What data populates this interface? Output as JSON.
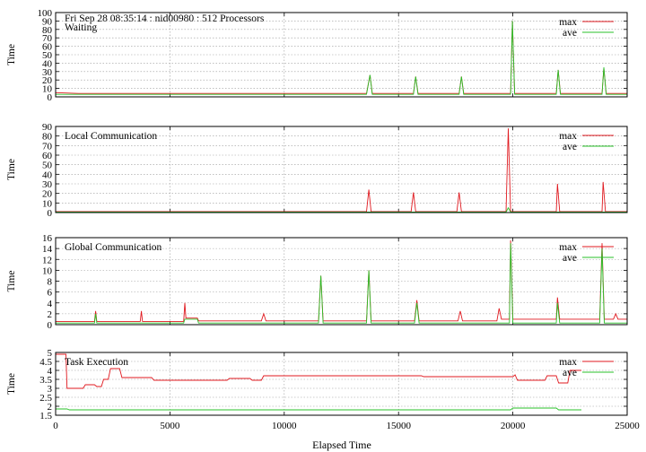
{
  "header": "Fri Sep 28 08:35:14 : nid00980 : 512 Processors",
  "xlabel": "Elapsed Time",
  "xlim": [
    0,
    25000
  ],
  "xticks": [
    0,
    5000,
    10000,
    15000,
    20000,
    25000
  ],
  "colors": {
    "max": "#e0191f",
    "ave": "#28c128",
    "grid": "#9a9a9a",
    "axis": "#000000"
  },
  "chart_data": [
    {
      "type": "line",
      "title": "Waiting",
      "ylabel": "Time",
      "ylim": [
        0,
        100
      ],
      "yticks": [
        0,
        10,
        20,
        30,
        40,
        50,
        60,
        70,
        80,
        90,
        100
      ],
      "grid": true,
      "legend": "top-right",
      "series": [
        {
          "name": "max",
          "color": "#e0191f",
          "points": [
            [
              0,
              5
            ],
            [
              1000,
              4
            ],
            [
              5000,
              4
            ],
            [
              10000,
              4
            ],
            [
              13600,
              4
            ],
            [
              13750,
              26
            ],
            [
              13850,
              4
            ],
            [
              15650,
              4
            ],
            [
              15750,
              24
            ],
            [
              15850,
              4
            ],
            [
              17650,
              4
            ],
            [
              17750,
              24
            ],
            [
              17850,
              4
            ],
            [
              19900,
              4
            ],
            [
              19980,
              90
            ],
            [
              20080,
              4
            ],
            [
              21900,
              4
            ],
            [
              21980,
              32
            ],
            [
              22080,
              4
            ],
            [
              23900,
              4
            ],
            [
              23980,
              34
            ],
            [
              24080,
              4
            ],
            [
              25000,
              4
            ]
          ]
        },
        {
          "name": "ave",
          "color": "#28c128",
          "points": [
            [
              0,
              3
            ],
            [
              1000,
              3
            ],
            [
              5000,
              3
            ],
            [
              10000,
              3
            ],
            [
              13600,
              3
            ],
            [
              13750,
              26
            ],
            [
              13850,
              3
            ],
            [
              15650,
              3
            ],
            [
              15750,
              24
            ],
            [
              15850,
              3
            ],
            [
              17650,
              3
            ],
            [
              17750,
              24
            ],
            [
              17850,
              3
            ],
            [
              19900,
              3
            ],
            [
              19980,
              90
            ],
            [
              20080,
              3
            ],
            [
              21900,
              3
            ],
            [
              21980,
              32
            ],
            [
              22080,
              3
            ],
            [
              23900,
              3
            ],
            [
              23980,
              35
            ],
            [
              24080,
              3
            ],
            [
              25000,
              3
            ]
          ]
        }
      ]
    },
    {
      "type": "line",
      "title": "Local Communication",
      "ylabel": "Time",
      "ylim": [
        0,
        90
      ],
      "yticks": [
        0,
        10,
        20,
        30,
        40,
        50,
        60,
        70,
        80,
        90
      ],
      "grid": true,
      "legend": "top-right",
      "series": [
        {
          "name": "max",
          "color": "#e0191f",
          "points": [
            [
              0,
              1
            ],
            [
              5000,
              1
            ],
            [
              10000,
              1
            ],
            [
              13600,
              1
            ],
            [
              13700,
              24
            ],
            [
              13800,
              1
            ],
            [
              15550,
              1
            ],
            [
              15650,
              21
            ],
            [
              15750,
              1
            ],
            [
              17550,
              1
            ],
            [
              17650,
              21
            ],
            [
              17750,
              1
            ],
            [
              19700,
              1
            ],
            [
              19800,
              88
            ],
            [
              19900,
              1
            ],
            [
              21900,
              1
            ],
            [
              21950,
              30
            ],
            [
              22050,
              1
            ],
            [
              23900,
              1
            ],
            [
              23950,
              32
            ],
            [
              24050,
              1
            ],
            [
              25000,
              1
            ]
          ]
        },
        {
          "name": "ave",
          "color": "#28c128",
          "points": [
            [
              0,
              0.5
            ],
            [
              5000,
              0.5
            ],
            [
              10000,
              0.5
            ],
            [
              19700,
              0.5
            ],
            [
              19800,
              5
            ],
            [
              19900,
              0.5
            ],
            [
              25000,
              0.5
            ]
          ]
        }
      ]
    },
    {
      "type": "line",
      "title": "Global Communication",
      "ylabel": "Time",
      "ylim": [
        0,
        16
      ],
      "yticks": [
        0,
        2,
        4,
        6,
        8,
        10,
        12,
        14,
        16
      ],
      "grid": true,
      "legend": "top-right",
      "series": [
        {
          "name": "max",
          "color": "#e0191f",
          "points": [
            [
              0,
              0.6
            ],
            [
              1700,
              0.6
            ],
            [
              1750,
              2.5
            ],
            [
              1800,
              0.6
            ],
            [
              3700,
              0.6
            ],
            [
              3750,
              2.5
            ],
            [
              3800,
              0.6
            ],
            [
              5600,
              0.6
            ],
            [
              5650,
              4
            ],
            [
              5700,
              1.2
            ],
            [
              6200,
              1.2
            ],
            [
              6250,
              0.7
            ],
            [
              9000,
              0.7
            ],
            [
              9100,
              2
            ],
            [
              9200,
              0.7
            ],
            [
              11500,
              0.7
            ],
            [
              11600,
              9
            ],
            [
              11700,
              0.7
            ],
            [
              13600,
              0.7
            ],
            [
              13700,
              10
            ],
            [
              13800,
              0.7
            ],
            [
              15700,
              0.7
            ],
            [
              15800,
              4.5
            ],
            [
              15900,
              0.7
            ],
            [
              17600,
              0.7
            ],
            [
              17700,
              2.5
            ],
            [
              17800,
              0.7
            ],
            [
              19300,
              0.7
            ],
            [
              19400,
              3
            ],
            [
              19500,
              1
            ],
            [
              19850,
              1
            ],
            [
              19900,
              15.5
            ],
            [
              20000,
              1
            ],
            [
              21900,
              1
            ],
            [
              21950,
              5
            ],
            [
              22050,
              1
            ],
            [
              23800,
              1
            ],
            [
              23900,
              15
            ],
            [
              24000,
              1
            ],
            [
              24400,
              1
            ],
            [
              24500,
              2
            ],
            [
              24600,
              1
            ],
            [
              25000,
              1
            ]
          ]
        },
        {
          "name": "ave",
          "color": "#28c128",
          "points": [
            [
              0,
              0.3
            ],
            [
              1700,
              0.3
            ],
            [
              1750,
              2
            ],
            [
              1800,
              0.3
            ],
            [
              5600,
              0.3
            ],
            [
              5650,
              1
            ],
            [
              6200,
              1
            ],
            [
              6250,
              0.3
            ],
            [
              11500,
              0.3
            ],
            [
              11600,
              9
            ],
            [
              11700,
              0.3
            ],
            [
              13600,
              0.3
            ],
            [
              13700,
              10
            ],
            [
              13800,
              0.3
            ],
            [
              15700,
              0.3
            ],
            [
              15800,
              4
            ],
            [
              15900,
              0.3
            ],
            [
              19850,
              0.3
            ],
            [
              19900,
              15
            ],
            [
              20000,
              0.3
            ],
            [
              21900,
              0.3
            ],
            [
              21950,
              4
            ],
            [
              22050,
              0.3
            ],
            [
              23800,
              0.3
            ],
            [
              23900,
              14
            ],
            [
              24000,
              0.3
            ],
            [
              25000,
              0.3
            ]
          ]
        }
      ]
    },
    {
      "type": "line",
      "title": "Task Execution",
      "ylabel": "Time",
      "ylim": [
        1.5,
        5
      ],
      "yticks": [
        1.5,
        2,
        2.5,
        3,
        3.5,
        4,
        4.5,
        5
      ],
      "grid": true,
      "legend": "top-right",
      "series": [
        {
          "name": "max",
          "color": "#e0191f",
          "points": [
            [
              0,
              4.9
            ],
            [
              450,
              4.9
            ],
            [
              500,
              3.0
            ],
            [
              1200,
              3.0
            ],
            [
              1300,
              3.2
            ],
            [
              1700,
              3.2
            ],
            [
              1800,
              3.1
            ],
            [
              2000,
              3.1
            ],
            [
              2100,
              3.5
            ],
            [
              2300,
              3.5
            ],
            [
              2400,
              4.1
            ],
            [
              2800,
              4.1
            ],
            [
              2900,
              3.6
            ],
            [
              4200,
              3.6
            ],
            [
              4300,
              3.45
            ],
            [
              7500,
              3.45
            ],
            [
              7600,
              3.55
            ],
            [
              8500,
              3.55
            ],
            [
              8600,
              3.45
            ],
            [
              9000,
              3.45
            ],
            [
              9100,
              3.7
            ],
            [
              16000,
              3.7
            ],
            [
              16100,
              3.65
            ],
            [
              20000,
              3.65
            ],
            [
              20100,
              3.75
            ],
            [
              20200,
              3.45
            ],
            [
              21400,
              3.45
            ],
            [
              21500,
              3.7
            ],
            [
              21900,
              3.7
            ],
            [
              22000,
              3.3
            ],
            [
              22400,
              3.3
            ],
            [
              22500,
              4.0
            ],
            [
              23000,
              4.0
            ]
          ]
        },
        {
          "name": "ave",
          "color": "#28c128",
          "points": [
            [
              0,
              1.85
            ],
            [
              500,
              1.85
            ],
            [
              600,
              1.8
            ],
            [
              19900,
              1.8
            ],
            [
              20000,
              1.9
            ],
            [
              21900,
              1.9
            ],
            [
              22000,
              1.8
            ],
            [
              23000,
              1.8
            ]
          ]
        }
      ]
    }
  ]
}
